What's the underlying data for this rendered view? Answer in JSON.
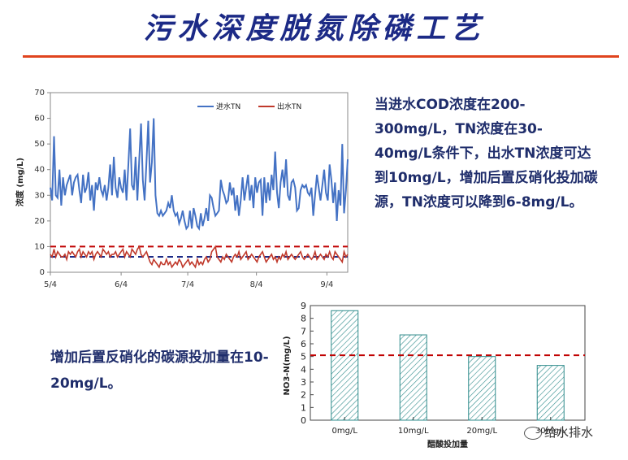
{
  "title": "污水深度脱氮除磷工艺",
  "paragraph1": "当进水COD浓度在200-300mg/L，TN浓度在30-40mg/L条件下，出水TN浓度可达到10mg/L，增加后置反硝化投加碳源，TN浓度可以降到6-8mg/L。",
  "paragraph2": "增加后置反硝化的碳源投加量在10-20mg/L。",
  "watermark": "给水排水",
  "colors": {
    "title": "#1c2a86",
    "rule": "#e0441e",
    "text": "#1f2d6b",
    "inflow": "#4472c4",
    "outflow": "#c0392b",
    "limit": "#c00000",
    "bar_hatch": "#2e8b8b"
  },
  "chart_data": [
    {
      "type": "line",
      "ylabel": "浓度 (mg/L)",
      "xlabel": "",
      "ylim": [
        0,
        70
      ],
      "yticks": [
        0,
        10,
        20,
        30,
        40,
        50,
        60,
        70
      ],
      "xticks": [
        "5/4",
        "6/4",
        "7/4",
        "8/4",
        "9/4"
      ],
      "legend_position": "top-right",
      "grid": false,
      "series": [
        {
          "name": "进水TN",
          "values": [
            33,
            28,
            53,
            30,
            29,
            40,
            26,
            37,
            30,
            34,
            36,
            38,
            30,
            35,
            37,
            38,
            32,
            27,
            38,
            31,
            33,
            39,
            28,
            34,
            24,
            35,
            32,
            37,
            32,
            30,
            34,
            28,
            33,
            42,
            30,
            45,
            33,
            29,
            37,
            33,
            31,
            40,
            28,
            42,
            56,
            34,
            32,
            45,
            28,
            44,
            58,
            36,
            28,
            43,
            59,
            35,
            43,
            60,
            30,
            23,
            22,
            24,
            22,
            23,
            24,
            27,
            25,
            30,
            24,
            22,
            23,
            19,
            21,
            24,
            20,
            17,
            18,
            24,
            17,
            25,
            22,
            18,
            17,
            23,
            18,
            21,
            25,
            20,
            30,
            29,
            25,
            22,
            23,
            24,
            36,
            32,
            30,
            27,
            28,
            35,
            30,
            33,
            24,
            30,
            22,
            28,
            37,
            28,
            33,
            38,
            28,
            34,
            25,
            37,
            31,
            35,
            36,
            22,
            37,
            27,
            35,
            28,
            38,
            32,
            47,
            31,
            25,
            35,
            40,
            33,
            44,
            30,
            28,
            35,
            36,
            33,
            24,
            25,
            32,
            34,
            33,
            34,
            31,
            30,
            33,
            22,
            30,
            38,
            33,
            28,
            34,
            40,
            31,
            28,
            42,
            36,
            27,
            35,
            20,
            32,
            26,
            50,
            23,
            32,
            44
          ],
          "xs": null
        },
        {
          "name": "出水TN",
          "values": [
            7,
            6,
            9,
            6,
            8,
            7,
            6,
            6,
            7,
            5,
            8,
            7,
            8,
            7,
            6,
            8,
            9,
            6,
            8,
            7,
            6,
            8,
            7,
            8,
            5,
            7,
            8,
            7,
            6,
            9,
            8,
            7,
            8,
            6,
            7,
            7,
            8,
            6,
            7,
            8,
            9,
            6,
            8,
            7,
            6,
            9,
            8,
            7,
            9,
            10,
            7,
            6,
            7,
            8,
            6,
            4,
            3,
            5,
            4,
            3,
            2,
            4,
            3,
            3,
            5,
            3,
            4,
            2,
            3,
            4,
            3,
            5,
            4,
            2,
            3,
            4,
            5,
            3,
            4,
            3,
            2,
            5,
            3,
            4,
            3,
            5,
            6,
            4,
            5,
            8,
            9,
            10,
            6,
            5,
            4,
            6,
            5,
            7,
            6,
            5,
            4,
            6,
            7,
            6,
            8,
            5,
            6,
            7,
            8,
            5,
            6,
            7,
            6,
            5,
            4,
            6,
            7,
            8,
            6,
            4,
            5,
            6,
            7,
            5,
            6,
            4,
            6,
            5,
            7,
            6,
            8,
            5,
            6,
            7,
            6,
            5,
            6,
            7,
            8,
            6,
            5,
            6,
            7,
            6,
            5,
            6,
            8,
            5,
            6,
            7,
            6,
            5,
            7,
            6,
            8,
            6,
            5,
            8,
            7,
            6,
            5,
            4,
            8,
            6,
            7
          ]
        }
      ],
      "reference_lines": [
        {
          "y": 10,
          "color": "#c00000"
        },
        {
          "y": 6,
          "color": "#1c2a86"
        }
      ]
    },
    {
      "type": "bar",
      "categories": [
        "0mg/L",
        "10mg/L",
        "20mg/L",
        "30mg/L"
      ],
      "values": [
        8.6,
        6.7,
        5.0,
        4.3
      ],
      "xlabel": "醋酸投加量",
      "ylabel": "NO3-N(mg/L)",
      "ylim": [
        0,
        9
      ],
      "yticks": [
        0,
        1,
        2,
        3,
        4,
        5,
        6,
        7,
        8,
        9
      ],
      "reference_line": 5.1,
      "grid": false
    }
  ]
}
